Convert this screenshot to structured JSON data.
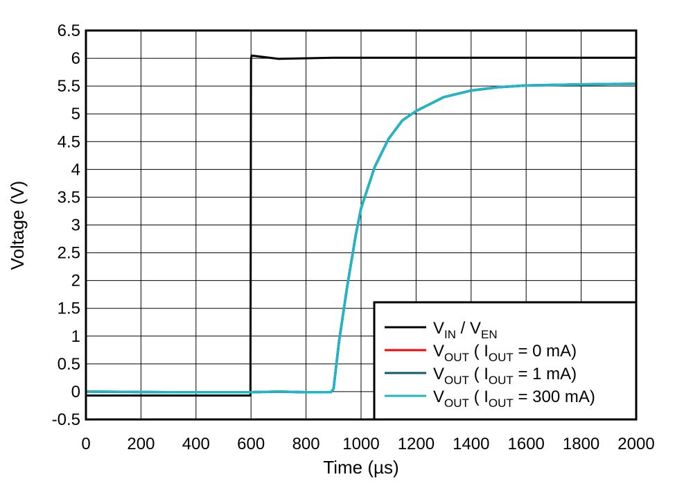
{
  "chart_data": {
    "type": "line",
    "xlabel": "Time (µs)",
    "ylabel": "Voltage (V)",
    "xlim": [
      0,
      2000
    ],
    "ylim": [
      -0.5,
      6.5
    ],
    "x_ticks": [
      0,
      200,
      400,
      600,
      800,
      1000,
      1200,
      1400,
      1600,
      1800,
      2000
    ],
    "y_ticks": [
      -0.5,
      0,
      0.5,
      1,
      1.5,
      2,
      2.5,
      3,
      3.5,
      4,
      4.5,
      5,
      5.5,
      6,
      6.5
    ],
    "x_tick_labels": [
      "0",
      "200",
      "400",
      "600",
      "800",
      "1000",
      "1200",
      "1400",
      "1600",
      "1800",
      "2000"
    ],
    "y_tick_labels": [
      "-0.5",
      "0",
      "0.5",
      "1",
      "1.5",
      "2",
      "2.5",
      "3",
      "3.5",
      "4",
      "4.5",
      "5",
      "5.5",
      "6",
      "6.5"
    ],
    "grid": true,
    "legend_position": "bottom-right",
    "series": [
      {
        "name": "VIN / VEN",
        "label_main": "V",
        "label_sub": "IN",
        "label_mid": " / V",
        "label_sub2": "EN",
        "label_tail": "",
        "color": "#000000",
        "x": [
          0,
          300,
          598,
          599,
          600,
          602,
          700,
          900,
          1200,
          2000
        ],
        "y": [
          -0.07,
          -0.07,
          -0.07,
          3.0,
          5.97,
          6.05,
          5.99,
          6.01,
          6.01,
          6.01
        ]
      },
      {
        "name": "VOUT ( IOUT = 0 mA)",
        "label_main": "V",
        "label_sub": "OUT",
        "label_mid": " ( I",
        "label_sub2": "OUT",
        "label_tail": " = 0 mA)",
        "color": "#ff0000",
        "x": [
          0,
          300,
          600,
          700,
          800,
          890,
          900,
          920,
          950,
          980,
          1000,
          1050,
          1100,
          1150,
          1200,
          1300,
          1400,
          1500,
          1600,
          1800,
          2000
        ],
        "y": [
          0.0,
          -0.01,
          -0.01,
          0.0,
          -0.01,
          -0.01,
          0.05,
          0.9,
          1.9,
          2.8,
          3.3,
          4.05,
          4.55,
          4.88,
          5.05,
          5.3,
          5.42,
          5.48,
          5.51,
          5.53,
          5.54
        ]
      },
      {
        "name": "VOUT ( IOUT = 1 mA)",
        "label_main": "V",
        "label_sub": "OUT",
        "label_mid": " ( I",
        "label_sub2": "OUT",
        "label_tail": " = 1 mA)",
        "color": "#0f5a6e",
        "x": [
          0,
          300,
          600,
          700,
          800,
          890,
          900,
          920,
          950,
          980,
          1000,
          1050,
          1100,
          1150,
          1200,
          1300,
          1400,
          1500,
          1600,
          1800,
          2000
        ],
        "y": [
          0.0,
          -0.01,
          -0.01,
          0.0,
          -0.01,
          -0.01,
          0.05,
          0.9,
          1.9,
          2.8,
          3.3,
          4.05,
          4.55,
          4.88,
          5.05,
          5.3,
          5.42,
          5.48,
          5.51,
          5.53,
          5.54
        ]
      },
      {
        "name": "VOUT ( IOUT = 300 mA)",
        "label_main": "V",
        "label_sub": "OUT",
        "label_mid": " ( I",
        "label_sub2": "OUT",
        "label_tail": " = 300 mA)",
        "color": "#1ab8c8",
        "x": [
          0,
          300,
          600,
          700,
          800,
          890,
          900,
          920,
          950,
          980,
          1000,
          1050,
          1100,
          1150,
          1200,
          1300,
          1400,
          1500,
          1600,
          1800,
          2000
        ],
        "y": [
          0.0,
          -0.01,
          -0.01,
          0.0,
          -0.01,
          -0.01,
          0.05,
          0.9,
          1.9,
          2.8,
          3.3,
          4.05,
          4.55,
          4.88,
          5.05,
          5.3,
          5.42,
          5.48,
          5.51,
          5.53,
          5.54
        ]
      }
    ]
  }
}
